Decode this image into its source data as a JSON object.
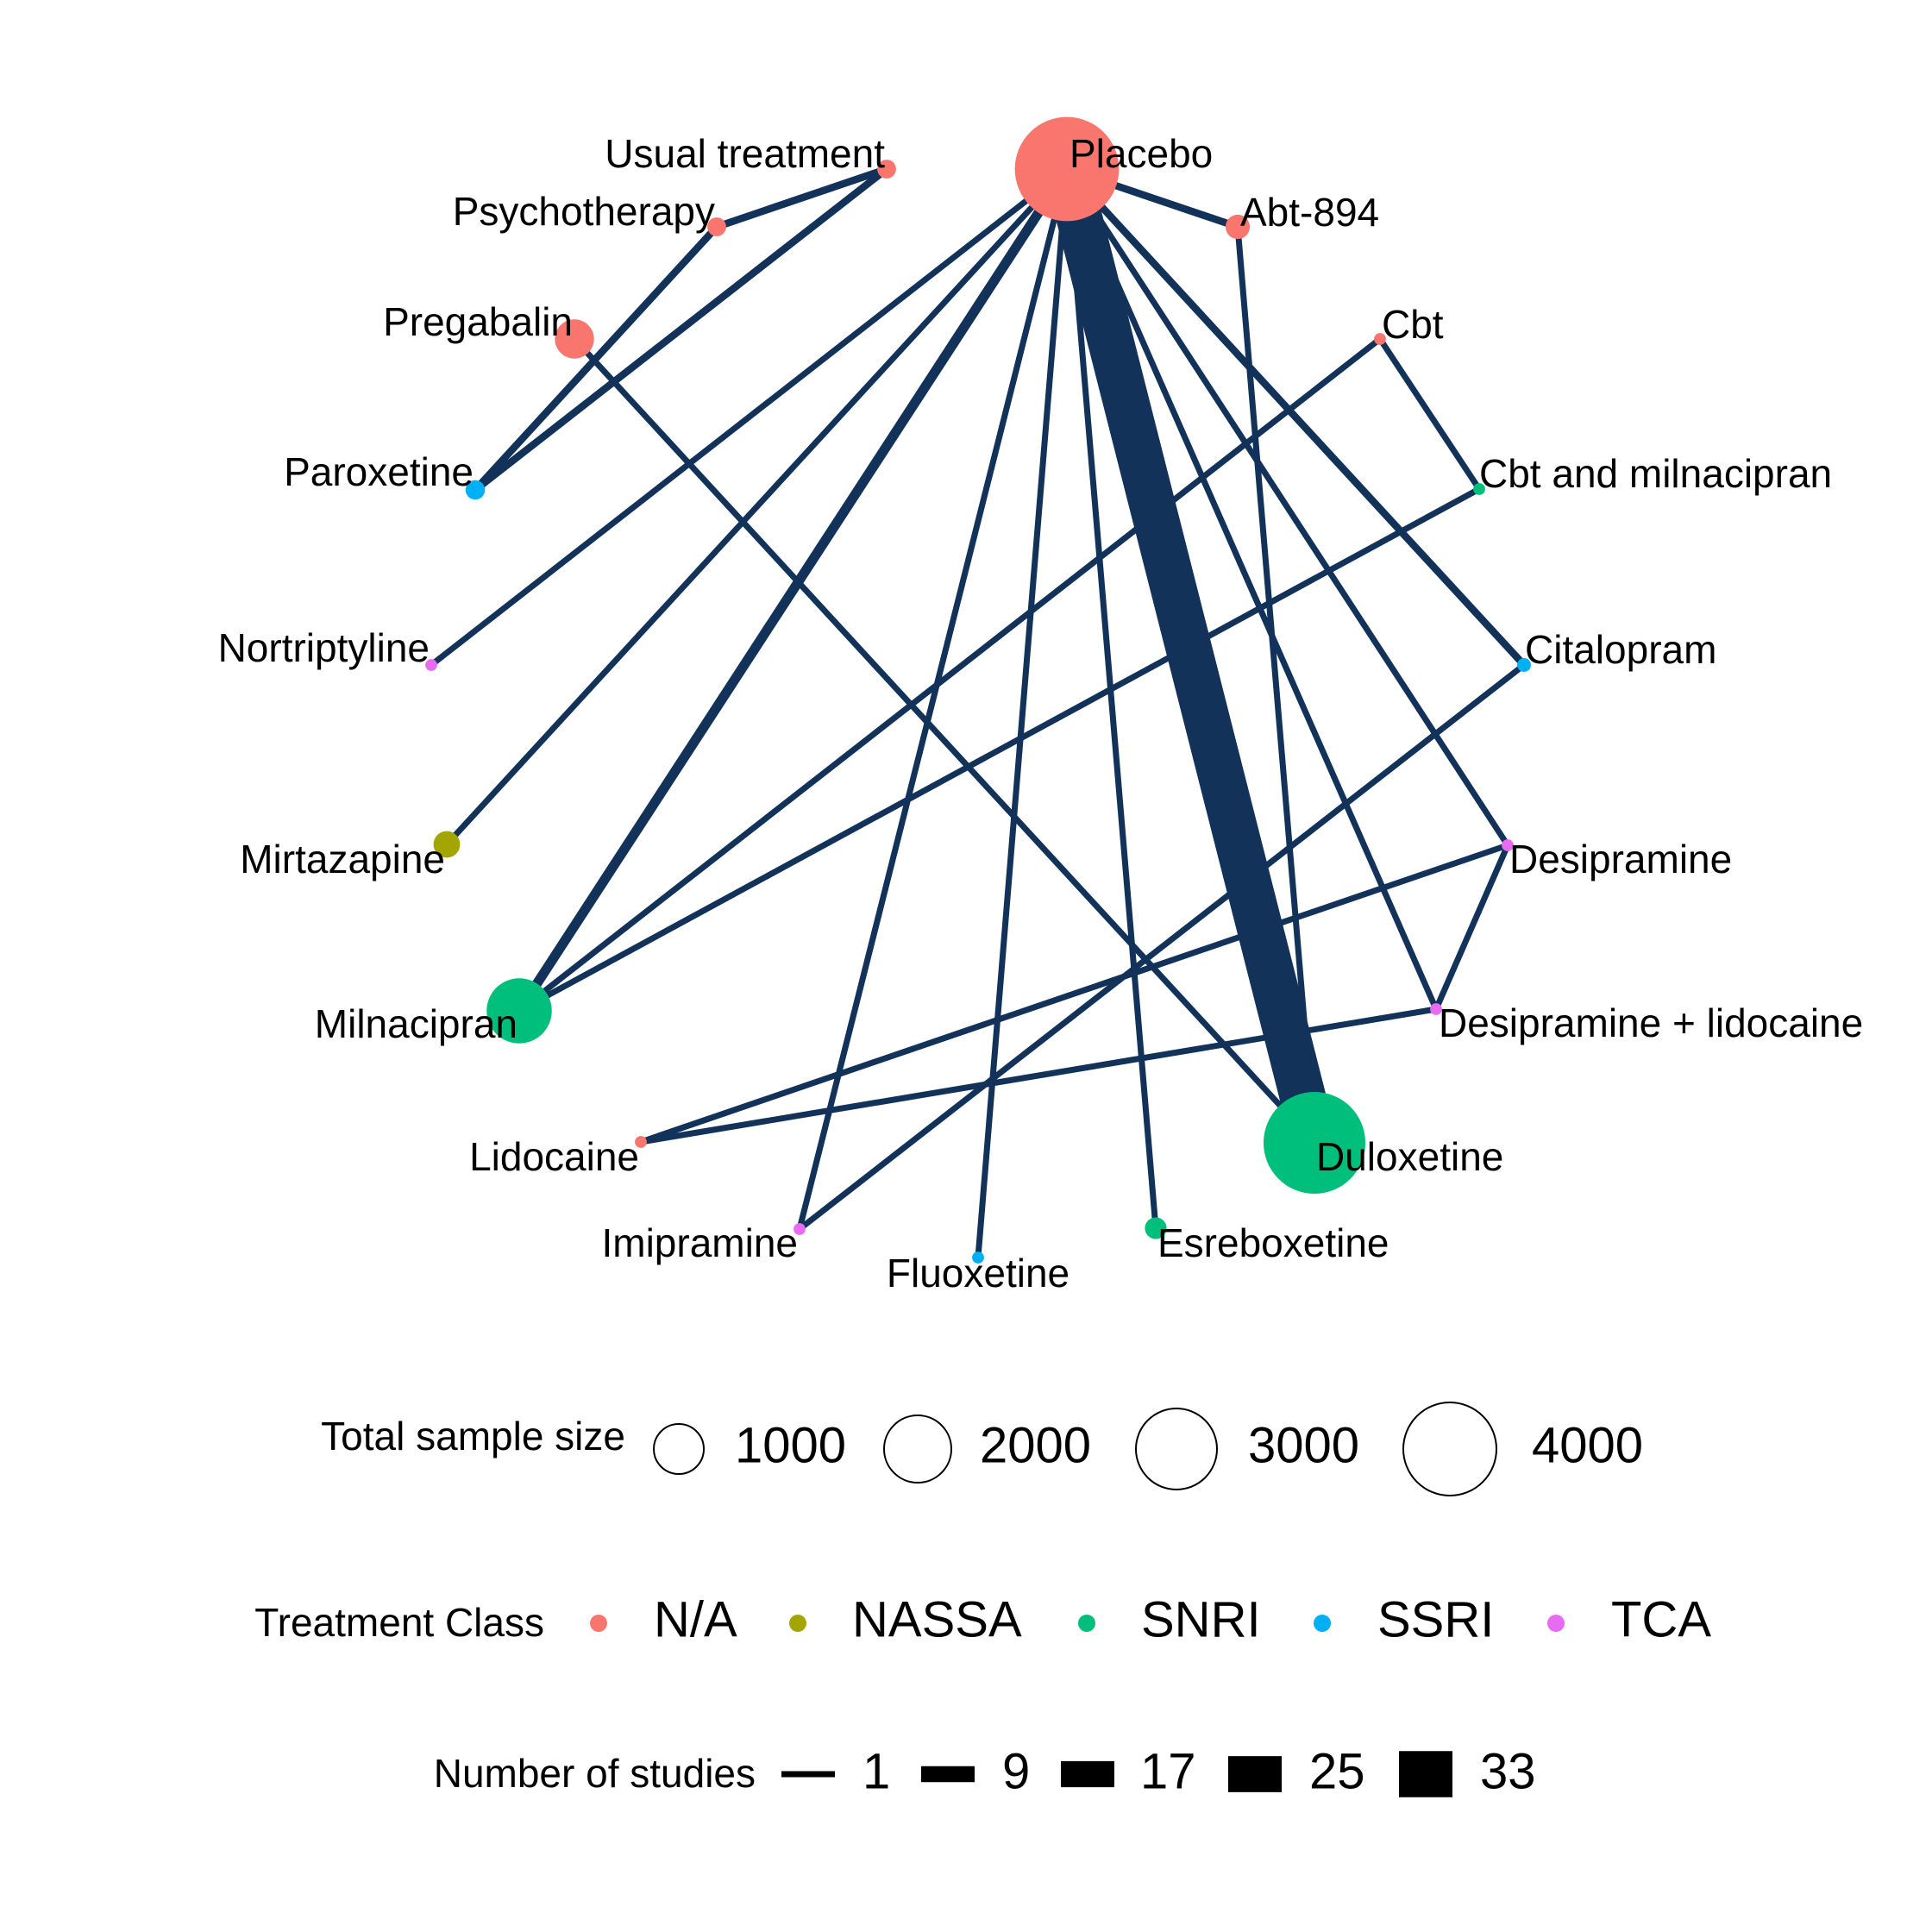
{
  "colors": {
    "edge": "#12325A",
    "background": "#FFFFFF",
    "classes": {
      "N/A": "#F8766D",
      "NASSA": "#A3A500",
      "SNRI": "#00BF7D",
      "SSRI": "#00B0F6",
      "TCA": "#E76BF3"
    }
  },
  "nodes": [
    {
      "id": "Placebo",
      "label": "Placebo",
      "class": "N/A",
      "sample_size": 4600
    },
    {
      "id": "Abt-894",
      "label": "Abt-894",
      "class": "N/A",
      "sample_size": 250
    },
    {
      "id": "Cbt",
      "label": "Cbt",
      "class": "N/A",
      "sample_size": 60
    },
    {
      "id": "Cbt and milnacipran",
      "label": "Cbt and milnacipran",
      "class": "SNRI",
      "sample_size": 60
    },
    {
      "id": "Citalopram",
      "label": "Citalopram",
      "class": "SSRI",
      "sample_size": 80
    },
    {
      "id": "Desipramine",
      "label": "Desipramine",
      "class": "TCA",
      "sample_size": 60
    },
    {
      "id": "Desipramine + lidocaine",
      "label": "Desipramine + lidocaine",
      "class": "TCA",
      "sample_size": 60
    },
    {
      "id": "Duloxetine",
      "label": "Duloxetine",
      "class": "SNRI",
      "sample_size": 4400
    },
    {
      "id": "Esreboxetine",
      "label": "Esreboxetine",
      "class": "SNRI",
      "sample_size": 200
    },
    {
      "id": "Fluoxetine",
      "label": "Fluoxetine",
      "class": "SSRI",
      "sample_size": 60
    },
    {
      "id": "Imipramine",
      "label": "Imipramine",
      "class": "TCA",
      "sample_size": 60
    },
    {
      "id": "Lidocaine",
      "label": "Lidocaine",
      "class": "N/A",
      "sample_size": 60
    },
    {
      "id": "Milnacipran",
      "label": "Milnacipran",
      "class": "SNRI",
      "sample_size": 1800
    },
    {
      "id": "Mirtazapine",
      "label": "Mirtazapine",
      "class": "NASSA",
      "sample_size": 300
    },
    {
      "id": "Nortriptyline",
      "label": "Nortriptyline",
      "class": "TCA",
      "sample_size": 60
    },
    {
      "id": "Paroxetine",
      "label": "Paroxetine",
      "class": "SSRI",
      "sample_size": 160
    },
    {
      "id": "Pregabalin",
      "label": "Pregabalin",
      "class": "N/A",
      "sample_size": 650
    },
    {
      "id": "Psychotherapy",
      "label": "Psychotherapy",
      "class": "N/A",
      "sample_size": 150
    },
    {
      "id": "Usual treatment",
      "label": "Usual treatment",
      "class": "N/A",
      "sample_size": 150
    }
  ],
  "edges": [
    {
      "from": "Placebo",
      "to": "Duloxetine",
      "studies": 33
    },
    {
      "from": "Placebo",
      "to": "Milnacipran",
      "studies": 4
    },
    {
      "from": "Placebo",
      "to": "Abt-894",
      "studies": 2
    },
    {
      "from": "Placebo",
      "to": "Citalopram",
      "studies": 2
    },
    {
      "from": "Placebo",
      "to": "Desipramine",
      "studies": 1
    },
    {
      "from": "Placebo",
      "to": "Desipramine + lidocaine",
      "studies": 1
    },
    {
      "from": "Placebo",
      "to": "Esreboxetine",
      "studies": 1
    },
    {
      "from": "Placebo",
      "to": "Fluoxetine",
      "studies": 1
    },
    {
      "from": "Placebo",
      "to": "Imipramine",
      "studies": 1
    },
    {
      "from": "Placebo",
      "to": "Mirtazapine",
      "studies": 1
    },
    {
      "from": "Placebo",
      "to": "Nortriptyline",
      "studies": 1
    },
    {
      "from": "Abt-894",
      "to": "Duloxetine",
      "studies": 1
    },
    {
      "from": "Pregabalin",
      "to": "Duloxetine",
      "studies": 1
    },
    {
      "from": "Usual treatment",
      "to": "Psychotherapy",
      "studies": 2
    },
    {
      "from": "Usual treatment",
      "to": "Paroxetine",
      "studies": 2
    },
    {
      "from": "Psychotherapy",
      "to": "Paroxetine",
      "studies": 2
    },
    {
      "from": "Cbt",
      "to": "Cbt and milnacipran",
      "studies": 1
    },
    {
      "from": "Cbt",
      "to": "Milnacipran",
      "studies": 1
    },
    {
      "from": "Cbt and milnacipran",
      "to": "Milnacipran",
      "studies": 1
    },
    {
      "from": "Citalopram",
      "to": "Imipramine",
      "studies": 1
    },
    {
      "from": "Desipramine",
      "to": "Desipramine + lidocaine",
      "studies": 1
    },
    {
      "from": "Desipramine",
      "to": "Lidocaine",
      "studies": 1
    },
    {
      "from": "Desipramine + lidocaine",
      "to": "Lidocaine",
      "studies": 1
    }
  ],
  "legend": {
    "sample_size": {
      "title": "Total sample size",
      "items": [
        {
          "label": "1000",
          "value": 1000
        },
        {
          "label": "2000",
          "value": 2000
        },
        {
          "label": "3000",
          "value": 3000
        },
        {
          "label": "4000",
          "value": 4000
        }
      ]
    },
    "treatment_class": {
      "title": "Treatment Class",
      "items": [
        {
          "label": "N/A",
          "class": "N/A"
        },
        {
          "label": "NASSA",
          "class": "NASSA"
        },
        {
          "label": "SNRI",
          "class": "SNRI"
        },
        {
          "label": "SSRI",
          "class": "SSRI"
        },
        {
          "label": "TCA",
          "class": "TCA"
        }
      ]
    },
    "studies": {
      "title": "Number of studies",
      "items": [
        {
          "label": "1",
          "value": 1
        },
        {
          "label": "9",
          "value": 9
        },
        {
          "label": "17",
          "value": 17
        },
        {
          "label": "25",
          "value": 25
        },
        {
          "label": "33",
          "value": 33
        }
      ]
    }
  }
}
